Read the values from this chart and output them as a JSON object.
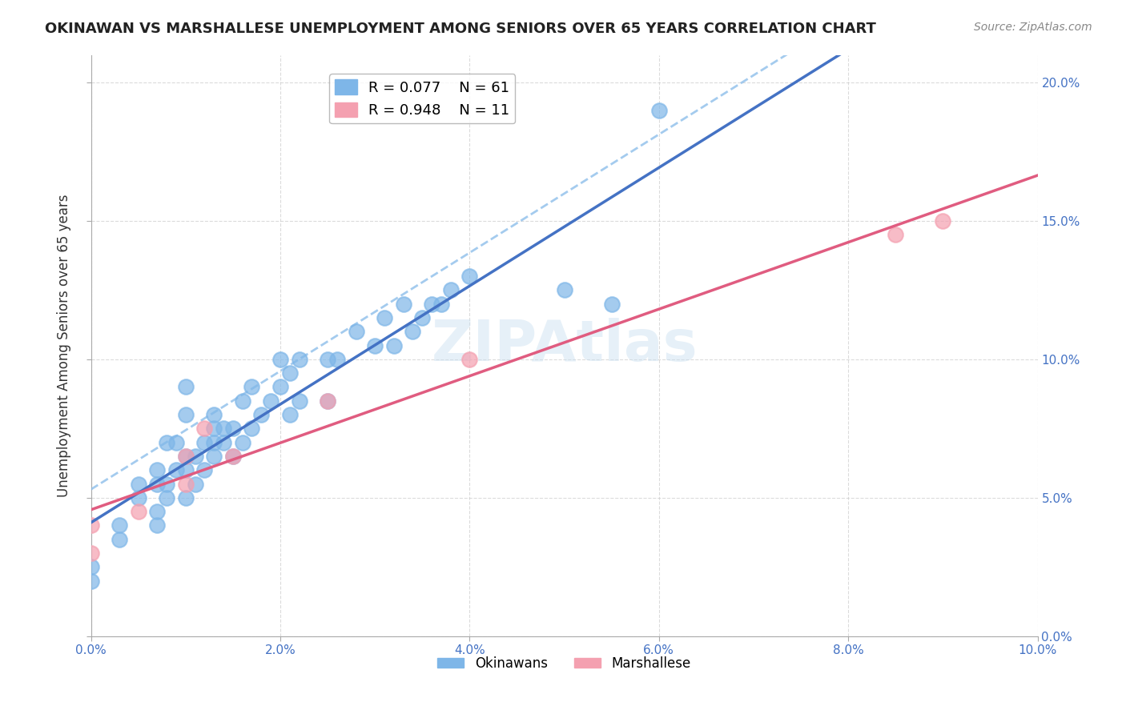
{
  "title": "OKINAWAN VS MARSHALLESE UNEMPLOYMENT AMONG SENIORS OVER 65 YEARS CORRELATION CHART",
  "source": "Source: ZipAtlas.com",
  "xlabel": "",
  "ylabel": "Unemployment Among Seniors over 65 years",
  "xlim": [
    0.0,
    0.1
  ],
  "ylim": [
    0.0,
    0.21
  ],
  "xticks": [
    0.0,
    0.02,
    0.04,
    0.06,
    0.08,
    0.1
  ],
  "yticks": [
    0.0,
    0.05,
    0.1,
    0.15,
    0.2
  ],
  "xtick_labels": [
    "0.0%",
    "2.0%",
    "4.0%",
    "6.0%",
    "8.0%",
    "10.0%"
  ],
  "ytick_labels": [
    "0.0%",
    "5.0%",
    "10.0%",
    "15.0%",
    "20.0%"
  ],
  "background_color": "#ffffff",
  "grid_color": "#cccccc",
  "watermark": "ZIPAtlas",
  "okinawan_color": "#7EB6E8",
  "marshallese_color": "#F4A0B0",
  "okinawan_line_color": "#4472C4",
  "marshallese_line_color": "#E05C80",
  "okinawan_dashed_color": "#7EB6E8",
  "legend_okinawan_R": "0.077",
  "legend_okinawan_N": "61",
  "legend_marshallese_R": "0.948",
  "legend_marshallese_N": "11",
  "okinawan_x": [
    0.0,
    0.0,
    0.003,
    0.003,
    0.005,
    0.005,
    0.007,
    0.007,
    0.007,
    0.007,
    0.008,
    0.008,
    0.008,
    0.009,
    0.009,
    0.01,
    0.01,
    0.01,
    0.01,
    0.01,
    0.011,
    0.011,
    0.012,
    0.012,
    0.013,
    0.013,
    0.013,
    0.013,
    0.014,
    0.014,
    0.015,
    0.015,
    0.016,
    0.016,
    0.017,
    0.017,
    0.018,
    0.019,
    0.02,
    0.02,
    0.021,
    0.021,
    0.022,
    0.022,
    0.025,
    0.025,
    0.026,
    0.028,
    0.03,
    0.031,
    0.032,
    0.033,
    0.034,
    0.035,
    0.036,
    0.037,
    0.038,
    0.04,
    0.05,
    0.055,
    0.06
  ],
  "okinawan_y": [
    0.02,
    0.025,
    0.035,
    0.04,
    0.05,
    0.055,
    0.04,
    0.045,
    0.055,
    0.06,
    0.05,
    0.055,
    0.07,
    0.06,
    0.07,
    0.05,
    0.06,
    0.065,
    0.08,
    0.09,
    0.055,
    0.065,
    0.06,
    0.07,
    0.065,
    0.07,
    0.075,
    0.08,
    0.07,
    0.075,
    0.065,
    0.075,
    0.07,
    0.085,
    0.075,
    0.09,
    0.08,
    0.085,
    0.09,
    0.1,
    0.08,
    0.095,
    0.085,
    0.1,
    0.085,
    0.1,
    0.1,
    0.11,
    0.105,
    0.115,
    0.105,
    0.12,
    0.11,
    0.115,
    0.12,
    0.12,
    0.125,
    0.13,
    0.125,
    0.12,
    0.19
  ],
  "marshallese_x": [
    0.0,
    0.0,
    0.005,
    0.01,
    0.01,
    0.012,
    0.015,
    0.025,
    0.04,
    0.085,
    0.09
  ],
  "marshallese_y": [
    0.03,
    0.04,
    0.045,
    0.055,
    0.065,
    0.075,
    0.065,
    0.085,
    0.1,
    0.145,
    0.15
  ]
}
